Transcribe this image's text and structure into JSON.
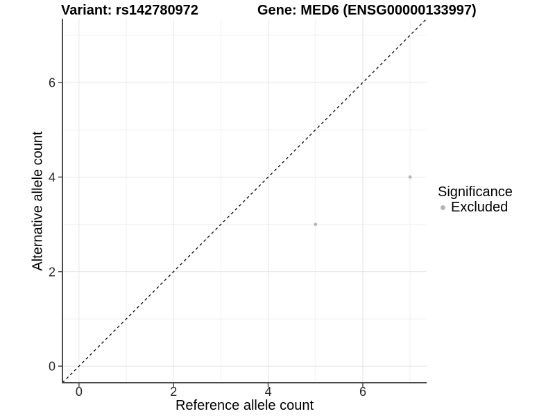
{
  "chart_data": {
    "type": "scatter",
    "title_variant": "Variant: rs142780972",
    "title_gene": "Gene: MED6 (ENSG00000133997)",
    "xlabel": "Reference allele count",
    "ylabel": "Alternative allele count",
    "xlim": [
      -0.35,
      7.35
    ],
    "ylim": [
      -0.35,
      7.35
    ],
    "xticks": [
      0,
      2,
      4,
      6
    ],
    "yticks": [
      0,
      2,
      4,
      6
    ],
    "xminor": [
      1,
      3,
      5,
      7
    ],
    "yminor": [
      1,
      3,
      5,
      7
    ],
    "grid": true,
    "legend_position": "right",
    "identity_line": {
      "style": "dashed",
      "slope": 1,
      "intercept": 0,
      "color": "#000000"
    },
    "series": [
      {
        "name": "Excluded",
        "color": "#b5b5b5",
        "points": [
          {
            "x": 5,
            "y": 3
          },
          {
            "x": 7,
            "y": 4
          }
        ]
      }
    ],
    "legend": {
      "title": "Significance",
      "entries": [
        {
          "label": "Excluded",
          "color": "#b5b5b5"
        }
      ]
    },
    "colors": {
      "background": "#ffffff",
      "grid_major": "#e4e4e4",
      "grid_minor": "#efefef",
      "axis_line": "#4a4a4a",
      "tick_text": "#262626",
      "title_text": "#000000"
    }
  }
}
